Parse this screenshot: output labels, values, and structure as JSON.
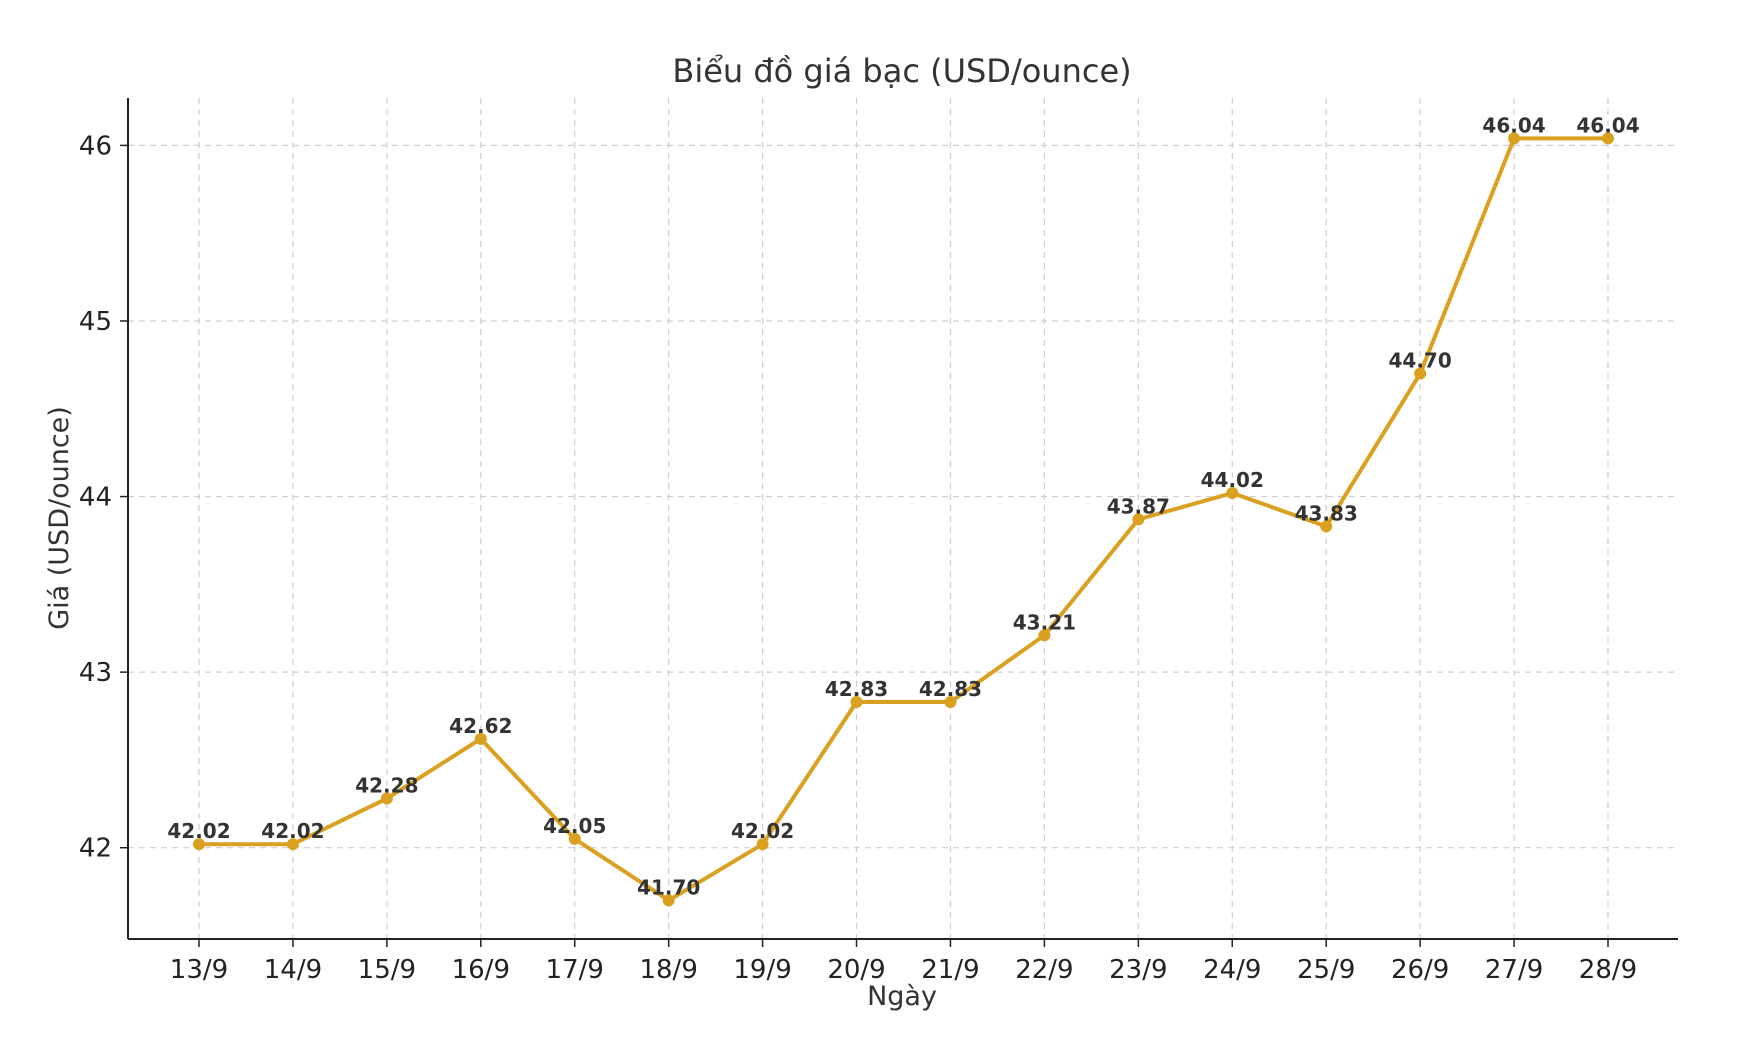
{
  "chart_data": {
    "type": "line",
    "title": "Biểu đồ giá bạc (USD/ounce)",
    "xlabel": "Ngày",
    "ylabel": "Giá (USD/ounce)",
    "categories": [
      "13/9",
      "14/9",
      "15/9",
      "16/9",
      "17/9",
      "18/9",
      "19/9",
      "20/9",
      "21/9",
      "22/9",
      "23/9",
      "24/9",
      "25/9",
      "26/9",
      "27/9",
      "28/9"
    ],
    "values": [
      42.02,
      42.02,
      42.28,
      42.62,
      42.05,
      41.7,
      42.02,
      42.83,
      42.83,
      43.21,
      43.87,
      44.02,
      43.83,
      44.7,
      46.04,
      46.04
    ],
    "value_labels": [
      "42.02",
      "42.02",
      "42.28",
      "42.62",
      "42.05",
      "41.70",
      "42.02",
      "42.83",
      "42.83",
      "43.21",
      "43.87",
      "44.02",
      "43.83",
      "44.70",
      "46.04",
      "46.04"
    ],
    "yticks": [
      42,
      43,
      44,
      45,
      46
    ],
    "ytick_labels": [
      "42",
      "43",
      "44",
      "45",
      "46"
    ],
    "ylim": [
      41.48,
      46.27
    ],
    "grid": true,
    "line_color": "#daa020"
  }
}
